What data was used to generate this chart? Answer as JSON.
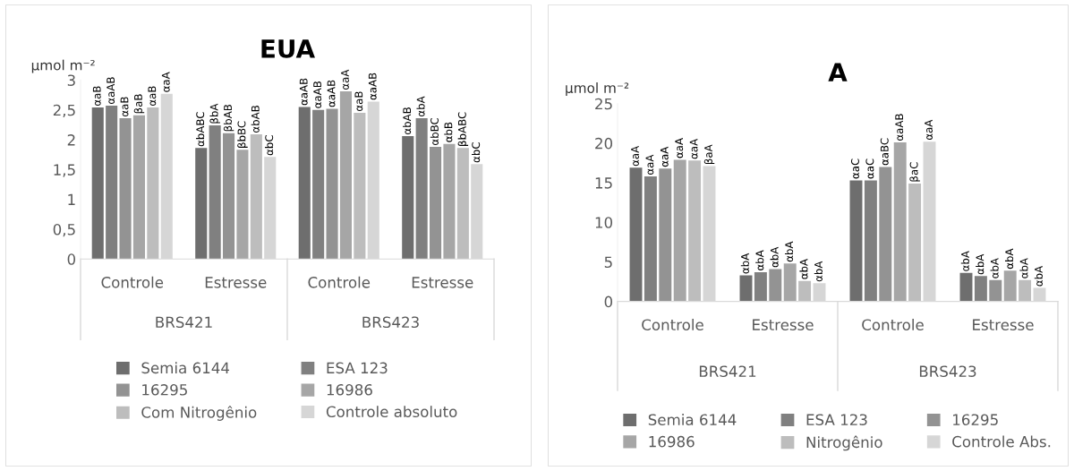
{
  "chart_data": [
    {
      "type": "bar",
      "title": "EUA",
      "ylabel": "µmol m⁻²",
      "categories": [
        "Controle",
        "Estresse",
        "Controle",
        "Estresse"
      ],
      "annotations": [
        "BRS421",
        "BRS423"
      ],
      "ylim": [
        0,
        3
      ],
      "yticks": [
        0,
        {
          "value": 0.5,
          "label": "0,5"
        },
        1,
        {
          "value": 1.5,
          "label": "1,5"
        },
        2,
        {
          "value": 2.5,
          "label": "2,5"
        },
        3
      ],
      "grid": false,
      "legend": "bottom",
      "series": [
        {
          "name": "Semia 6144",
          "color": "#6e6e6e",
          "values": [
            2.54,
            1.86,
            2.55,
            2.06
          ],
          "value_labels": [
            "αaB",
            "αbABC",
            "αaAB",
            "αbAB"
          ]
        },
        {
          "name": "ESA 123",
          "color": "#808080",
          "values": [
            2.57,
            2.24,
            2.5,
            2.36
          ],
          "value_labels": [
            "αaAB",
            "βbA",
            "αaAB",
            "αbA"
          ]
        },
        {
          "name": "16295",
          "color": "#939393",
          "values": [
            2.36,
            2.11,
            2.52,
            1.88
          ],
          "value_labels": [
            "αaB",
            "βbAB",
            "αaAB",
            "αbBC"
          ]
        },
        {
          "name": "16986",
          "color": "#a6a6a6",
          "values": [
            2.41,
            1.83,
            2.81,
            1.93
          ],
          "value_labels": [
            "βaB",
            "βbBC",
            "αaA",
            "αbB"
          ]
        },
        {
          "name": "Com Nitrogênio",
          "color": "#bdbdbd",
          "values": [
            2.54,
            2.09,
            2.45,
            1.86
          ],
          "value_labels": [
            "αaB",
            "αbAB",
            "αaB",
            "βbABC"
          ]
        },
        {
          "name": "Controle absoluto",
          "color": "#d6d6d6",
          "values": [
            2.77,
            1.71,
            2.64,
            1.59
          ],
          "value_labels": [
            "αaA",
            "αbC",
            "αaAB",
            "αbC"
          ]
        }
      ]
    },
    {
      "type": "bar",
      "title": "A",
      "ylabel": "µmol m⁻²",
      "categories": [
        "Controle",
        "Estresse",
        "Controle",
        "Estresse"
      ],
      "annotations": [
        "BRS421",
        "BRS423"
      ],
      "ylim": [
        0,
        25
      ],
      "yticks": [
        0,
        5,
        10,
        15,
        20,
        25
      ],
      "grid": false,
      "legend": "bottom",
      "series": [
        {
          "name": "Semia 6144",
          "color": "#6e6e6e",
          "values": [
            16.9,
            3.3,
            15.3,
            3.6
          ],
          "value_labels": [
            "αaA",
            "αbA",
            "αaC",
            "αbA"
          ]
        },
        {
          "name": "ESA 123",
          "color": "#808080",
          "values": [
            15.8,
            3.7,
            15.3,
            3.2
          ],
          "value_labels": [
            "αaA",
            "αbA",
            "αaC",
            "αbA"
          ]
        },
        {
          "name": "16295",
          "color": "#939393",
          "values": [
            16.8,
            4.1,
            17.0,
            2.7
          ],
          "value_labels": [
            "αaA",
            "αbA",
            "αaBC",
            "αbA"
          ]
        },
        {
          "name": "16986",
          "color": "#a6a6a6",
          "values": [
            17.9,
            4.8,
            20.1,
            3.9
          ],
          "value_labels": [
            "αaA",
            "αbA",
            "αaAB",
            "αbA"
          ]
        },
        {
          "name": "Nitrogênio",
          "color": "#bdbdbd",
          "values": [
            17.8,
            2.6,
            14.9,
            2.7
          ],
          "value_labels": [
            "αaA",
            "αbA",
            "βaC",
            "αbA"
          ]
        },
        {
          "name": "Controle Abs.",
          "color": "#d6d6d6",
          "values": [
            17.1,
            2.3,
            20.2,
            1.7
          ],
          "value_labels": [
            "βaA",
            "αbA",
            "αaA",
            "αbA"
          ]
        }
      ]
    }
  ]
}
